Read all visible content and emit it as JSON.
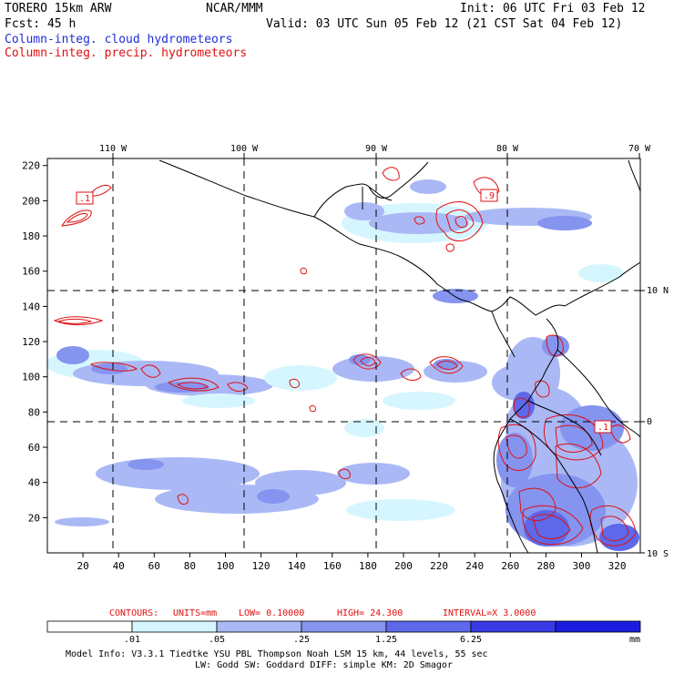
{
  "header": {
    "model": "TORERO  15km ARW",
    "org": "NCAR/MMM",
    "init": "Init: 06 UTC Fri 03 Feb 12",
    "fcst": "Fcst:   45 h",
    "valid": "Valid: 03 UTC Sun 05 Feb 12 (21 CST Sat 04 Feb 12)",
    "line_cloud": "Column-integ. cloud hydrometeors",
    "line_precip": "Column-integ. precip. hydrometeors"
  },
  "contours": {
    "label": "CONTOURS:",
    "units": "UNITS=mm",
    "low": "LOW= 0.10000",
    "high": "HIGH=  24.300",
    "interval": "INTERVAL=X  3.0000",
    "box_labels": [
      ".1",
      ".9",
      ".1"
    ]
  },
  "colorbar": {
    "ticks": [
      ".01",
      ".05",
      ".25",
      "1.25",
      "6.25"
    ],
    "unit": "mm",
    "colors": [
      "#ffffff",
      "#d6f6ff",
      "#aab8f5",
      "#8594ef",
      "#5d68ea",
      "#3a3ae6",
      "#1c1ce0"
    ]
  },
  "footer": {
    "line1": "Model Info: V3.3.1    Tiedtke YSU PBL  Thompson     Noah LSM  15 km,   44 levels,   55 sec",
    "line2": "LW: Godd SW: Goddard DIFF: simple KM: 2D Smagor"
  },
  "chart_data": {
    "type": "heatmap",
    "title": "Column-integ. cloud hydrometeors / Column-integ. precip. hydrometeors",
    "x_ticks": [
      20,
      40,
      60,
      80,
      100,
      120,
      140,
      160,
      180,
      200,
      220,
      240,
      260,
      280,
      300,
      320
    ],
    "y_ticks": [
      20,
      40,
      60,
      80,
      100,
      120,
      140,
      160,
      180,
      200,
      220
    ],
    "xlim": [
      0,
      333
    ],
    "ylim": [
      0,
      224
    ],
    "lon_labels": [
      "110 W",
      "100 W",
      "90 W",
      "80 W",
      "70 W"
    ],
    "lat_labels": [
      "10 N",
      "0",
      "10 S"
    ],
    "legend_levels_mm": [
      0.01,
      0.05,
      0.25,
      1.25,
      6.25
    ],
    "red_contour_low": 0.1,
    "red_contour_high": 24.3,
    "red_contour_interval_factor": 3.0
  }
}
